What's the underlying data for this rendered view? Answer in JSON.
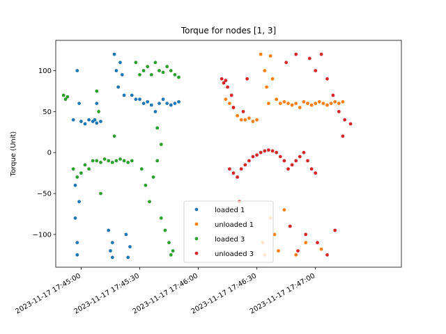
{
  "chart_data": {
    "type": "scatter",
    "title": "Torque for nodes [1, 3]",
    "xlabel": "",
    "ylabel": "Torque (Unit)",
    "x_is_time": true,
    "xlim": [
      "2023-11-17 17:44:47",
      "2023-11-17 17:47:44"
    ],
    "ylim": [
      -140,
      137
    ],
    "yticks": [
      -100,
      -50,
      0,
      50,
      100
    ],
    "xticks": [
      "2023-11-17 17:45:00",
      "2023-11-17 17:45:30",
      "2023-11-17 17:46:00",
      "2023-11-17 17:46:30",
      "2023-11-17 17:47:00"
    ],
    "grid": false,
    "legend_position": "lower-center",
    "series": [
      {
        "name": "loaded 1",
        "color": "#1f77b4",
        "points": [
          [
            "2023-11-17 17:44:56",
            40
          ],
          [
            "2023-11-17 17:44:58",
            100
          ],
          [
            "2023-11-17 17:44:59",
            60
          ],
          [
            "2023-11-17 17:45:00",
            38
          ],
          [
            "2023-11-17 17:45:02",
            35
          ],
          [
            "2023-11-17 17:45:04",
            40
          ],
          [
            "2023-11-17 17:45:06",
            38
          ],
          [
            "2023-11-17 17:45:08",
            36
          ],
          [
            "2023-11-17 17:45:10",
            38
          ],
          [
            "2023-11-17 17:44:57",
            -40
          ],
          [
            "2023-11-17 17:44:57",
            -80
          ],
          [
            "2023-11-17 17:44:58",
            -110
          ],
          [
            "2023-11-17 17:44:58",
            -125
          ],
          [
            "2023-11-17 17:44:59",
            -60
          ],
          [
            "2023-11-17 17:45:07",
            40
          ],
          [
            "2023-11-17 17:45:08",
            60
          ],
          [
            "2023-11-17 17:45:14",
            -95
          ],
          [
            "2023-11-17 17:45:15",
            -120
          ],
          [
            "2023-11-17 17:45:16",
            -110
          ],
          [
            "2023-11-17 17:45:16",
            -128
          ],
          [
            "2023-11-17 17:45:17",
            120
          ],
          [
            "2023-11-17 17:45:18",
            100
          ],
          [
            "2023-11-17 17:45:19",
            80
          ],
          [
            "2023-11-17 17:45:20",
            110
          ],
          [
            "2023-11-17 17:45:21",
            95
          ],
          [
            "2023-11-17 17:45:22",
            70
          ],
          [
            "2023-11-17 17:45:23",
            -100
          ],
          [
            "2023-11-17 17:45:24",
            -128
          ],
          [
            "2023-11-17 17:45:25",
            -115
          ],
          [
            "2023-11-17 17:45:26",
            70
          ],
          [
            "2023-11-17 17:45:28",
            65
          ],
          [
            "2023-11-17 17:45:30",
            65
          ],
          [
            "2023-11-17 17:45:32",
            60
          ],
          [
            "2023-11-17 17:45:34",
            62
          ],
          [
            "2023-11-17 17:45:36",
            58
          ],
          [
            "2023-11-17 17:45:38",
            50
          ],
          [
            "2023-11-17 17:45:40",
            60
          ],
          [
            "2023-11-17 17:45:42",
            65
          ],
          [
            "2023-11-17 17:45:44",
            60
          ],
          [
            "2023-11-17 17:45:46",
            58
          ],
          [
            "2023-11-17 17:45:48",
            60
          ],
          [
            "2023-11-17 17:45:50",
            62
          ]
        ]
      },
      {
        "name": "unloaded 1",
        "color": "#ff7f0e",
        "points": [
          [
            "2023-11-17 17:46:14",
            65
          ],
          [
            "2023-11-17 17:46:16",
            60
          ],
          [
            "2023-11-17 17:46:18",
            55
          ],
          [
            "2023-11-17 17:46:20",
            45
          ],
          [
            "2023-11-17 17:46:22",
            40
          ],
          [
            "2023-11-17 17:46:24",
            40
          ],
          [
            "2023-11-17 17:46:26",
            42
          ],
          [
            "2023-11-17 17:46:28",
            38
          ],
          [
            "2023-11-17 17:46:30",
            40
          ],
          [
            "2023-11-17 17:46:32",
            120
          ],
          [
            "2023-11-17 17:46:34",
            100
          ],
          [
            "2023-11-17 17:46:35",
            80
          ],
          [
            "2023-11-17 17:46:36",
            60
          ],
          [
            "2023-11-17 17:46:37",
            118
          ],
          [
            "2023-11-17 17:46:38",
            90
          ],
          [
            "2023-11-17 17:46:40",
            65
          ],
          [
            "2023-11-17 17:46:42",
            60
          ],
          [
            "2023-11-17 17:46:44",
            62
          ],
          [
            "2023-11-17 17:46:46",
            60
          ],
          [
            "2023-11-17 17:46:48",
            58
          ],
          [
            "2023-11-17 17:46:50",
            60
          ],
          [
            "2023-11-17 17:46:52",
            55
          ],
          [
            "2023-11-17 17:46:54",
            62
          ],
          [
            "2023-11-17 17:46:56",
            60
          ],
          [
            "2023-11-17 17:46:58",
            58
          ],
          [
            "2023-11-17 17:47:00",
            60
          ],
          [
            "2023-11-17 17:47:02",
            62
          ],
          [
            "2023-11-17 17:47:04",
            60
          ],
          [
            "2023-11-17 17:47:06",
            58
          ],
          [
            "2023-11-17 17:47:08",
            60
          ],
          [
            "2023-11-17 17:47:10",
            62
          ],
          [
            "2023-11-17 17:47:12",
            60
          ],
          [
            "2023-11-17 17:47:14",
            62
          ],
          [
            "2023-11-17 17:46:33",
            -110
          ],
          [
            "2023-11-17 17:46:34",
            -125
          ],
          [
            "2023-11-17 17:46:37",
            -80
          ],
          [
            "2023-11-17 17:46:39",
            -100
          ],
          [
            "2023-11-17 17:46:41",
            -120
          ],
          [
            "2023-11-17 17:46:44",
            -70
          ],
          [
            "2023-11-17 17:46:50",
            -125
          ],
          [
            "2023-11-17 17:46:55",
            -110
          ],
          [
            "2023-11-17 17:47:03",
            -118
          ]
        ]
      },
      {
        "name": "loaded 3",
        "color": "#2ca02c",
        "points": [
          [
            "2023-11-17 17:44:51",
            70
          ],
          [
            "2023-11-17 17:44:52",
            65
          ],
          [
            "2023-11-17 17:44:53",
            68
          ],
          [
            "2023-11-17 17:44:56",
            -20
          ],
          [
            "2023-11-17 17:44:58",
            -30
          ],
          [
            "2023-11-17 17:45:00",
            -25
          ],
          [
            "2023-11-17 17:45:02",
            -15
          ],
          [
            "2023-11-17 17:45:04",
            -20
          ],
          [
            "2023-11-17 17:45:06",
            -10
          ],
          [
            "2023-11-17 17:45:08",
            -10
          ],
          [
            "2023-11-17 17:45:10",
            -12
          ],
          [
            "2023-11-17 17:45:12",
            -8
          ],
          [
            "2023-11-17 17:45:14",
            -10
          ],
          [
            "2023-11-17 17:45:16",
            -12
          ],
          [
            "2023-11-17 17:45:18",
            -10
          ],
          [
            "2023-11-17 17:45:20",
            -8
          ],
          [
            "2023-11-17 17:45:22",
            -10
          ],
          [
            "2023-11-17 17:45:24",
            -12
          ],
          [
            "2023-11-17 17:45:26",
            -10
          ],
          [
            "2023-11-17 17:45:08",
            75
          ],
          [
            "2023-11-17 17:45:09",
            50
          ],
          [
            "2023-11-17 17:45:10",
            -50
          ],
          [
            "2023-11-17 17:45:17",
            20
          ],
          [
            "2023-11-17 17:45:28",
            110
          ],
          [
            "2023-11-17 17:45:30",
            95
          ],
          [
            "2023-11-17 17:45:32",
            100
          ],
          [
            "2023-11-17 17:45:34",
            105
          ],
          [
            "2023-11-17 17:45:36",
            95
          ],
          [
            "2023-11-17 17:45:38",
            110
          ],
          [
            "2023-11-17 17:45:40",
            100
          ],
          [
            "2023-11-17 17:45:42",
            98
          ],
          [
            "2023-11-17 17:45:44",
            105
          ],
          [
            "2023-11-17 17:45:46",
            100
          ],
          [
            "2023-11-17 17:45:48",
            95
          ],
          [
            "2023-11-17 17:45:50",
            92
          ],
          [
            "2023-11-17 17:45:31",
            -20
          ],
          [
            "2023-11-17 17:45:33",
            -40
          ],
          [
            "2023-11-17 17:45:35",
            -60
          ],
          [
            "2023-11-17 17:45:37",
            -30
          ],
          [
            "2023-11-17 17:45:39",
            -10
          ],
          [
            "2023-11-17 17:45:41",
            -80
          ],
          [
            "2023-11-17 17:45:43",
            -95
          ],
          [
            "2023-11-17 17:45:45",
            -110
          ],
          [
            "2023-11-17 17:45:46",
            -125
          ],
          [
            "2023-11-17 17:45:47",
            -120
          ],
          [
            "2023-11-17 17:45:39",
            30
          ],
          [
            "2023-11-17 17:45:41",
            10
          ]
        ]
      },
      {
        "name": "unloaded 3",
        "color": "#d62728",
        "points": [
          [
            "2023-11-17 17:46:12",
            90
          ],
          [
            "2023-11-17 17:46:13",
            85
          ],
          [
            "2023-11-17 17:46:14",
            88
          ],
          [
            "2023-11-17 17:46:15",
            80
          ],
          [
            "2023-11-17 17:46:16",
            -20
          ],
          [
            "2023-11-17 17:46:18",
            -25
          ],
          [
            "2023-11-17 17:46:20",
            -30
          ],
          [
            "2023-11-17 17:46:22",
            -20
          ],
          [
            "2023-11-17 17:46:24",
            -15
          ],
          [
            "2023-11-17 17:46:26",
            -10
          ],
          [
            "2023-11-17 17:46:28",
            -5
          ],
          [
            "2023-11-17 17:46:30",
            -3
          ],
          [
            "2023-11-17 17:46:32",
            0
          ],
          [
            "2023-11-17 17:46:34",
            2
          ],
          [
            "2023-11-17 17:46:36",
            3
          ],
          [
            "2023-11-17 17:46:38",
            2
          ],
          [
            "2023-11-17 17:46:40",
            0
          ],
          [
            "2023-11-17 17:46:42",
            -5
          ],
          [
            "2023-11-17 17:46:44",
            -10
          ],
          [
            "2023-11-17 17:46:46",
            -20
          ],
          [
            "2023-11-17 17:46:48",
            -15
          ],
          [
            "2023-11-17 17:46:50",
            -10
          ],
          [
            "2023-11-17 17:46:52",
            -5
          ],
          [
            "2023-11-17 17:46:54",
            0
          ],
          [
            "2023-11-17 17:46:56",
            -10
          ],
          [
            "2023-11-17 17:46:58",
            -20
          ],
          [
            "2023-11-17 17:47:00",
            -25
          ],
          [
            "2023-11-17 17:46:17",
            70
          ],
          [
            "2023-11-17 17:46:18",
            55
          ],
          [
            "2023-11-17 17:46:21",
            -60
          ],
          [
            "2023-11-17 17:46:23",
            50
          ],
          [
            "2023-11-17 17:46:25",
            90
          ],
          [
            "2023-11-17 17:46:45",
            110
          ],
          [
            "2023-11-17 17:46:50",
            120
          ],
          [
            "2023-11-17 17:46:57",
            115
          ],
          [
            "2023-11-17 17:47:00",
            100
          ],
          [
            "2023-11-17 17:47:03",
            120
          ],
          [
            "2023-11-17 17:47:06",
            90
          ],
          [
            "2023-11-17 17:47:09",
            70
          ],
          [
            "2023-11-17 17:47:12",
            50
          ],
          [
            "2023-11-17 17:47:15",
            40
          ],
          [
            "2023-11-17 17:47:18",
            35
          ],
          [
            "2023-11-17 17:46:47",
            -90
          ],
          [
            "2023-11-17 17:46:51",
            -120
          ],
          [
            "2023-11-17 17:46:55",
            -100
          ],
          [
            "2023-11-17 17:47:01",
            -110
          ],
          [
            "2023-11-17 17:47:06",
            -125
          ],
          [
            "2023-11-17 17:47:10",
            -95
          ],
          [
            "2023-11-17 17:47:14",
            20
          ]
        ]
      }
    ]
  }
}
